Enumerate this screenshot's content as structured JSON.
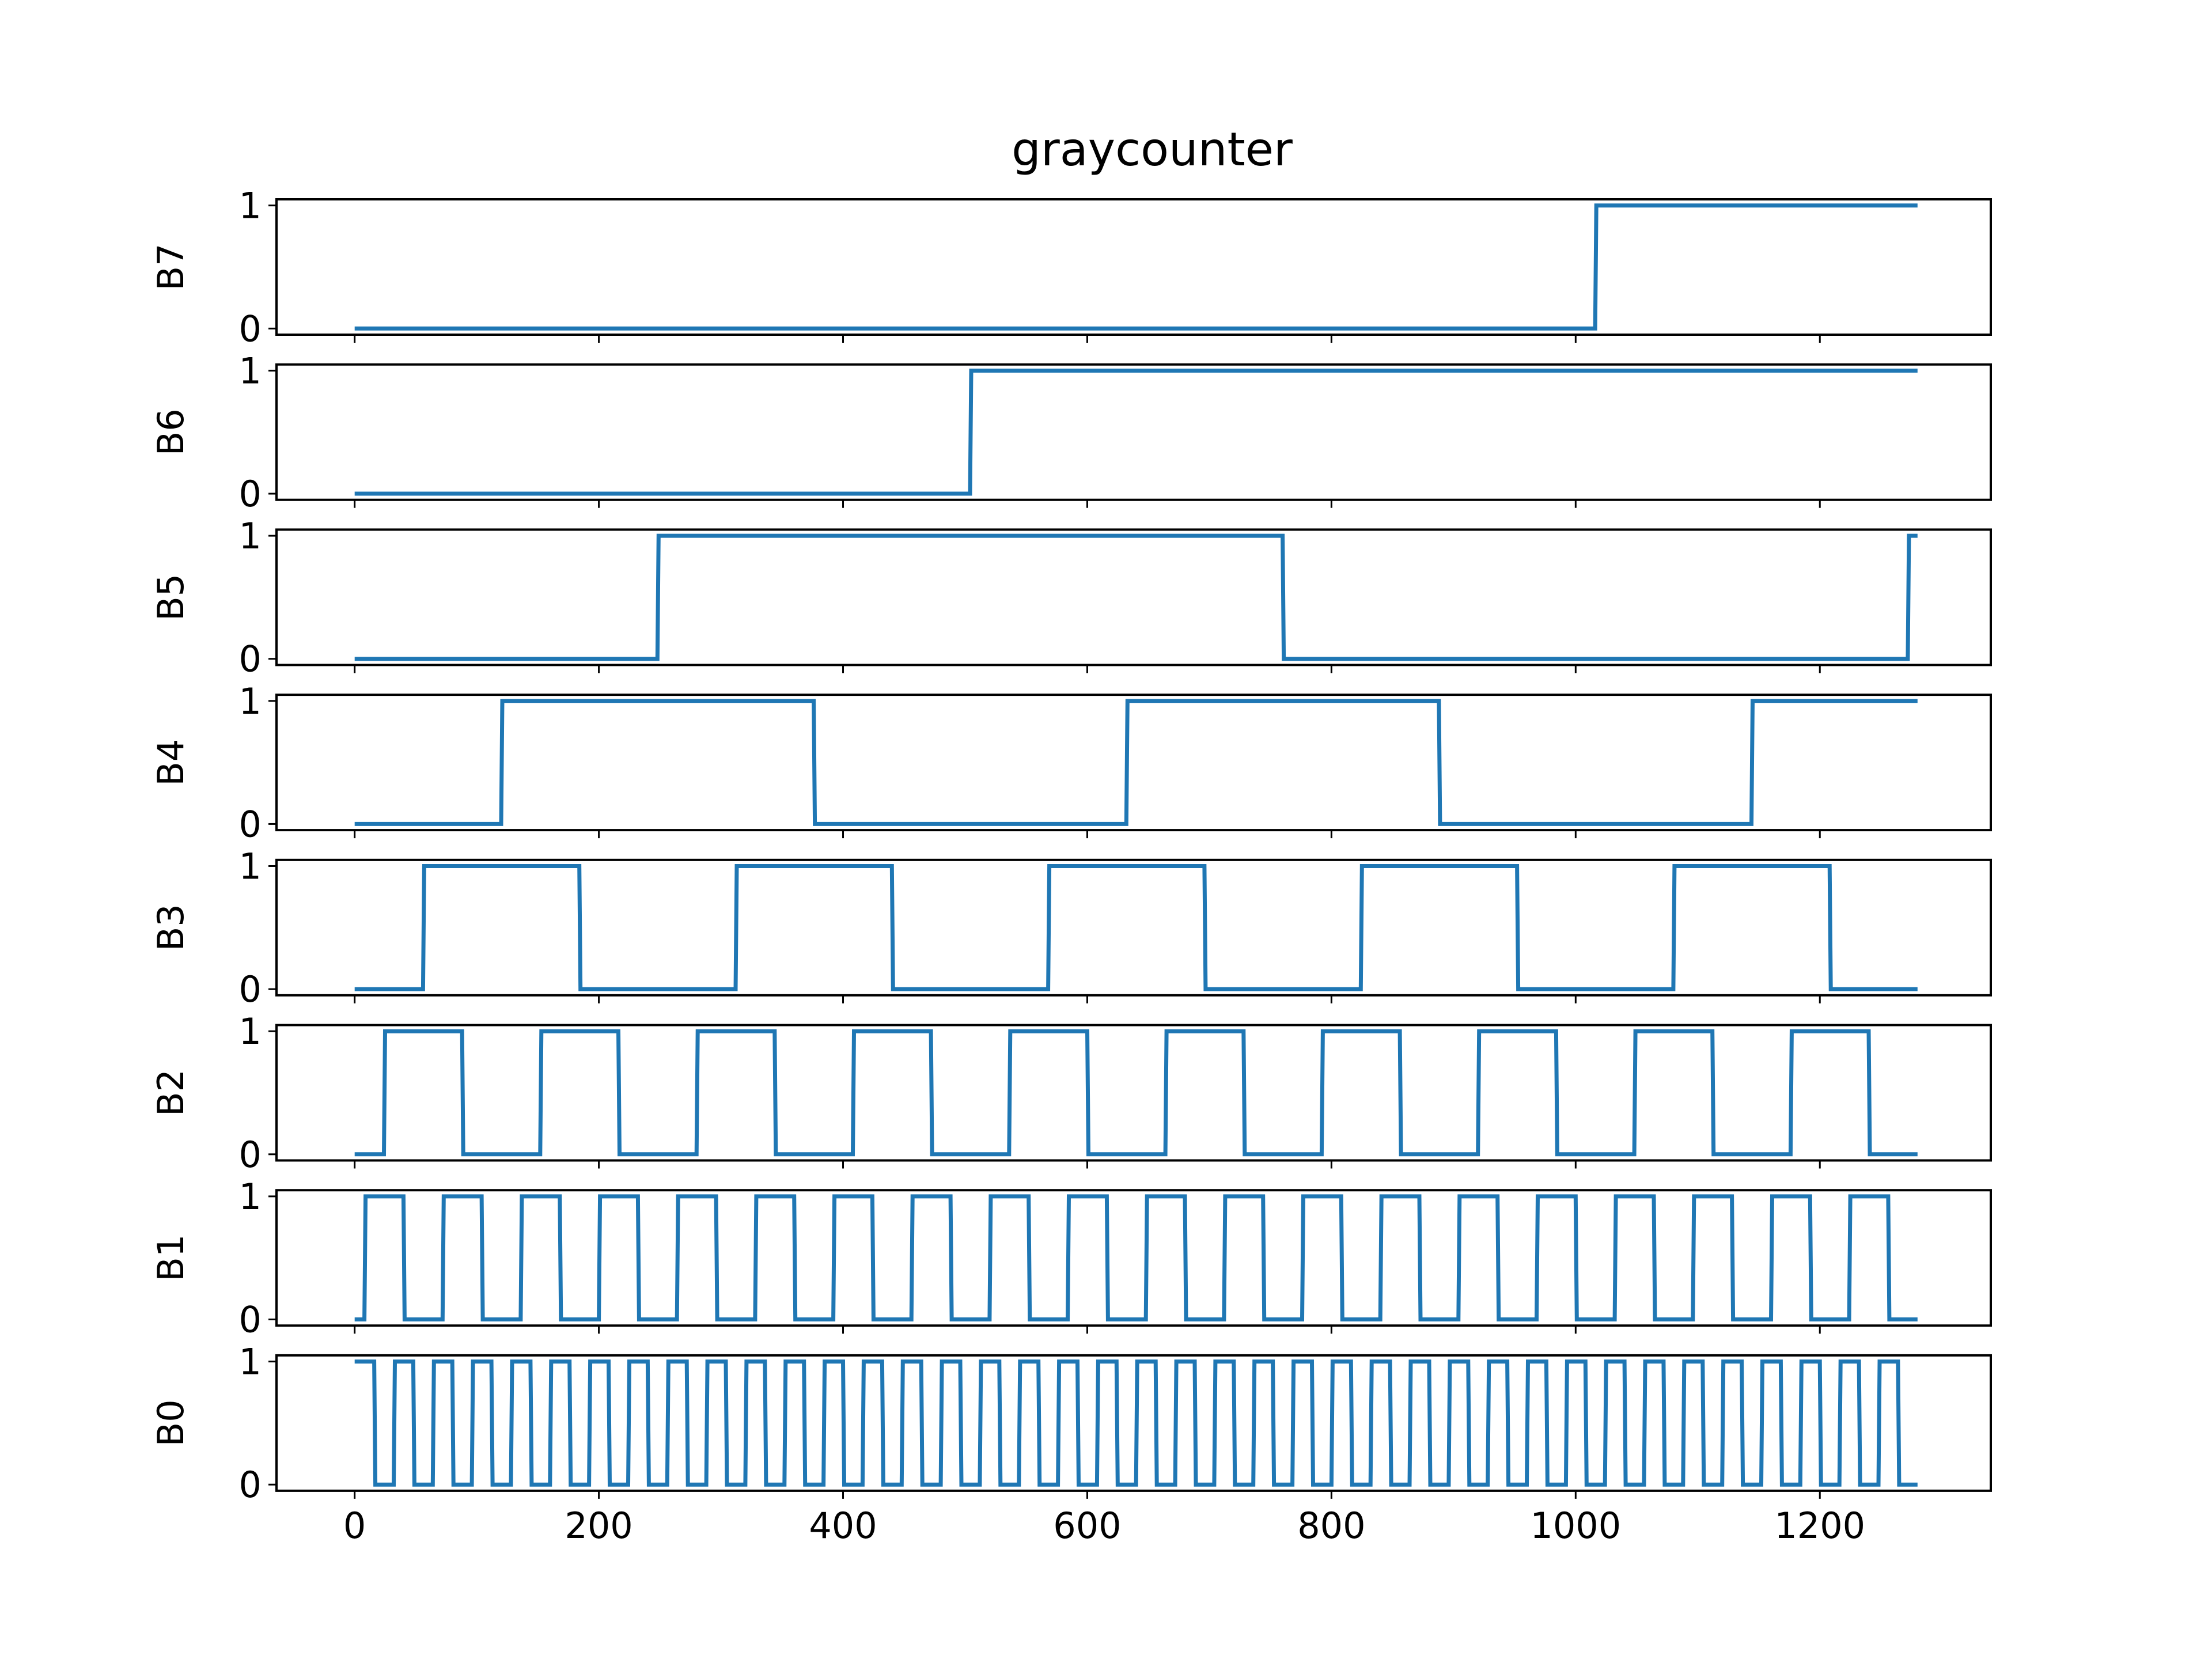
{
  "title": "graycounter",
  "colors": {
    "series": "#1f77b4",
    "axes": "#000000",
    "background": "#ffffff"
  },
  "chart_data": {
    "type": "line",
    "style": "step",
    "title": "graycounter",
    "xlabel": "",
    "xlim": [
      -64,
      1340
    ],
    "ylim": [
      -0.05,
      1.05
    ],
    "x_ticks": [
      0,
      200,
      400,
      600,
      800,
      1000,
      1200
    ],
    "x_tick_labels": [
      "0",
      "200",
      "400",
      "600",
      "800",
      "1000",
      "1200"
    ],
    "y_ticks": [
      0,
      1
    ],
    "y_tick_labels": [
      "0",
      "1"
    ],
    "x_end": 1280,
    "grid": false,
    "legend": "none",
    "panels": [
      {
        "ylabel": "B7",
        "transitions": [
          [
            0,
            0
          ],
          [
            1016,
            1
          ]
        ]
      },
      {
        "ylabel": "B6",
        "transitions": [
          [
            0,
            0
          ],
          [
            504,
            1
          ]
        ]
      },
      {
        "ylabel": "B5",
        "transitions": [
          [
            0,
            0
          ],
          [
            248,
            1
          ],
          [
            760,
            0
          ],
          [
            1272,
            1
          ]
        ]
      },
      {
        "ylabel": "B4",
        "transitions": [
          [
            0,
            0
          ],
          [
            120,
            1
          ],
          [
            376,
            0
          ],
          [
            632,
            1
          ],
          [
            888,
            0
          ],
          [
            1144,
            1
          ]
        ]
      },
      {
        "ylabel": "B3",
        "transitions": [
          [
            0,
            0
          ],
          [
            56,
            1
          ],
          [
            184,
            0
          ],
          [
            312,
            1
          ],
          [
            440,
            0
          ],
          [
            568,
            1
          ],
          [
            696,
            0
          ],
          [
            824,
            1
          ],
          [
            952,
            0
          ],
          [
            1080,
            1
          ],
          [
            1208,
            0
          ]
        ]
      },
      {
        "ylabel": "B2",
        "transitions": [
          [
            0,
            0
          ],
          [
            24,
            1
          ],
          [
            88,
            0
          ],
          [
            152,
            1
          ],
          [
            216,
            0
          ],
          [
            280,
            1
          ],
          [
            344,
            0
          ],
          [
            408,
            1
          ],
          [
            472,
            0
          ],
          [
            536,
            1
          ],
          [
            600,
            0
          ],
          [
            664,
            1
          ],
          [
            728,
            0
          ],
          [
            792,
            1
          ],
          [
            856,
            0
          ],
          [
            920,
            1
          ],
          [
            984,
            0
          ],
          [
            1048,
            1
          ],
          [
            1112,
            0
          ],
          [
            1176,
            1
          ],
          [
            1240,
            0
          ]
        ]
      },
      {
        "ylabel": "B1",
        "transitions": [
          [
            0,
            0
          ],
          [
            8,
            1
          ],
          [
            40,
            0
          ],
          [
            72,
            1
          ],
          [
            104,
            0
          ],
          [
            136,
            1
          ],
          [
            168,
            0
          ],
          [
            200,
            1
          ],
          [
            232,
            0
          ],
          [
            264,
            1
          ],
          [
            296,
            0
          ],
          [
            328,
            1
          ],
          [
            360,
            0
          ],
          [
            392,
            1
          ],
          [
            424,
            0
          ],
          [
            456,
            1
          ],
          [
            488,
            0
          ],
          [
            520,
            1
          ],
          [
            552,
            0
          ],
          [
            584,
            1
          ],
          [
            616,
            0
          ],
          [
            648,
            1
          ],
          [
            680,
            0
          ],
          [
            712,
            1
          ],
          [
            744,
            0
          ],
          [
            776,
            1
          ],
          [
            808,
            0
          ],
          [
            840,
            1
          ],
          [
            872,
            0
          ],
          [
            904,
            1
          ],
          [
            936,
            0
          ],
          [
            968,
            1
          ],
          [
            1000,
            0
          ],
          [
            1032,
            1
          ],
          [
            1064,
            0
          ],
          [
            1096,
            1
          ],
          [
            1128,
            0
          ],
          [
            1160,
            1
          ],
          [
            1192,
            0
          ],
          [
            1224,
            1
          ],
          [
            1256,
            0
          ]
        ]
      },
      {
        "ylabel": "B0",
        "transitions": [
          [
            0,
            1
          ],
          [
            16,
            0
          ],
          [
            32,
            1
          ],
          [
            48,
            0
          ],
          [
            64,
            1
          ],
          [
            80,
            0
          ],
          [
            96,
            1
          ],
          [
            112,
            0
          ],
          [
            128,
            1
          ],
          [
            144,
            0
          ],
          [
            160,
            1
          ],
          [
            176,
            0
          ],
          [
            192,
            1
          ],
          [
            208,
            0
          ],
          [
            224,
            1
          ],
          [
            240,
            0
          ],
          [
            256,
            1
          ],
          [
            272,
            0
          ],
          [
            288,
            1
          ],
          [
            304,
            0
          ],
          [
            320,
            1
          ],
          [
            336,
            0
          ],
          [
            352,
            1
          ],
          [
            368,
            0
          ],
          [
            384,
            1
          ],
          [
            400,
            0
          ],
          [
            416,
            1
          ],
          [
            432,
            0
          ],
          [
            448,
            1
          ],
          [
            464,
            0
          ],
          [
            480,
            1
          ],
          [
            496,
            0
          ],
          [
            512,
            1
          ],
          [
            528,
            0
          ],
          [
            544,
            1
          ],
          [
            560,
            0
          ],
          [
            576,
            1
          ],
          [
            592,
            0
          ],
          [
            608,
            1
          ],
          [
            624,
            0
          ],
          [
            640,
            1
          ],
          [
            656,
            0
          ],
          [
            672,
            1
          ],
          [
            688,
            0
          ],
          [
            704,
            1
          ],
          [
            720,
            0
          ],
          [
            736,
            1
          ],
          [
            752,
            0
          ],
          [
            768,
            1
          ],
          [
            784,
            0
          ],
          [
            800,
            1
          ],
          [
            816,
            0
          ],
          [
            832,
            1
          ],
          [
            848,
            0
          ],
          [
            864,
            1
          ],
          [
            880,
            0
          ],
          [
            896,
            1
          ],
          [
            912,
            0
          ],
          [
            928,
            1
          ],
          [
            944,
            0
          ],
          [
            960,
            1
          ],
          [
            976,
            0
          ],
          [
            992,
            1
          ],
          [
            1008,
            0
          ],
          [
            1024,
            1
          ],
          [
            1040,
            0
          ],
          [
            1056,
            1
          ],
          [
            1072,
            0
          ],
          [
            1088,
            1
          ],
          [
            1104,
            0
          ],
          [
            1120,
            1
          ],
          [
            1136,
            0
          ],
          [
            1152,
            1
          ],
          [
            1168,
            0
          ],
          [
            1184,
            1
          ],
          [
            1200,
            0
          ],
          [
            1216,
            1
          ],
          [
            1232,
            0
          ],
          [
            1248,
            1
          ],
          [
            1264,
            0
          ]
        ]
      }
    ]
  }
}
